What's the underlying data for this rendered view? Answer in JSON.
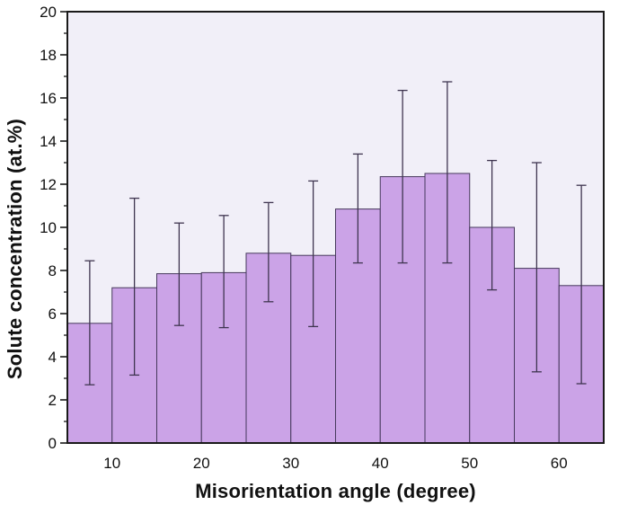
{
  "figure": {
    "background": "#ffffff",
    "plot_background": "#F1EFF8",
    "frame_color": "#1a1a1a",
    "tick_color": "#1a1a1a",
    "label_color": "#111111"
  },
  "chart_data": {
    "type": "bar",
    "title": "",
    "xlabel": "Misorientation angle (degree)",
    "ylabel": "Solute concentration (at.%)",
    "xlim": [
      5,
      65
    ],
    "ylim": [
      0,
      20
    ],
    "x_ticks": [
      10,
      20,
      30,
      40,
      50,
      60
    ],
    "y_ticks": [
      0,
      2,
      4,
      6,
      8,
      10,
      12,
      14,
      16,
      18,
      20
    ],
    "y_minor_ticks": [
      1,
      3,
      5,
      7,
      9,
      11,
      13,
      15,
      17,
      19
    ],
    "bin_width_degrees": 5,
    "bin_edges": [
      5,
      10,
      15,
      20,
      25,
      30,
      35,
      40,
      45,
      50,
      55,
      60,
      65
    ],
    "categories": [
      "5-10",
      "10-15",
      "15-20",
      "20-25",
      "25-30",
      "30-35",
      "35-40",
      "40-45",
      "45-50",
      "50-55",
      "55-60",
      "60-65"
    ],
    "values": [
      5.55,
      7.2,
      7.85,
      7.9,
      8.8,
      8.7,
      10.85,
      12.35,
      12.5,
      10.0,
      8.1,
      7.3
    ],
    "error_upper": [
      8.45,
      11.35,
      10.2,
      10.55,
      11.15,
      12.15,
      13.4,
      16.35,
      16.75,
      13.1,
      13.0,
      11.95
    ],
    "error_lower": [
      2.7,
      3.15,
      5.45,
      5.35,
      6.55,
      5.4,
      8.35,
      8.35,
      8.35,
      7.1,
      3.3,
      2.75
    ],
    "grid": false,
    "legend": null,
    "bar_fill": "#CBA3E7",
    "bar_edge": "#46395C",
    "error_color": "#3F3550"
  }
}
